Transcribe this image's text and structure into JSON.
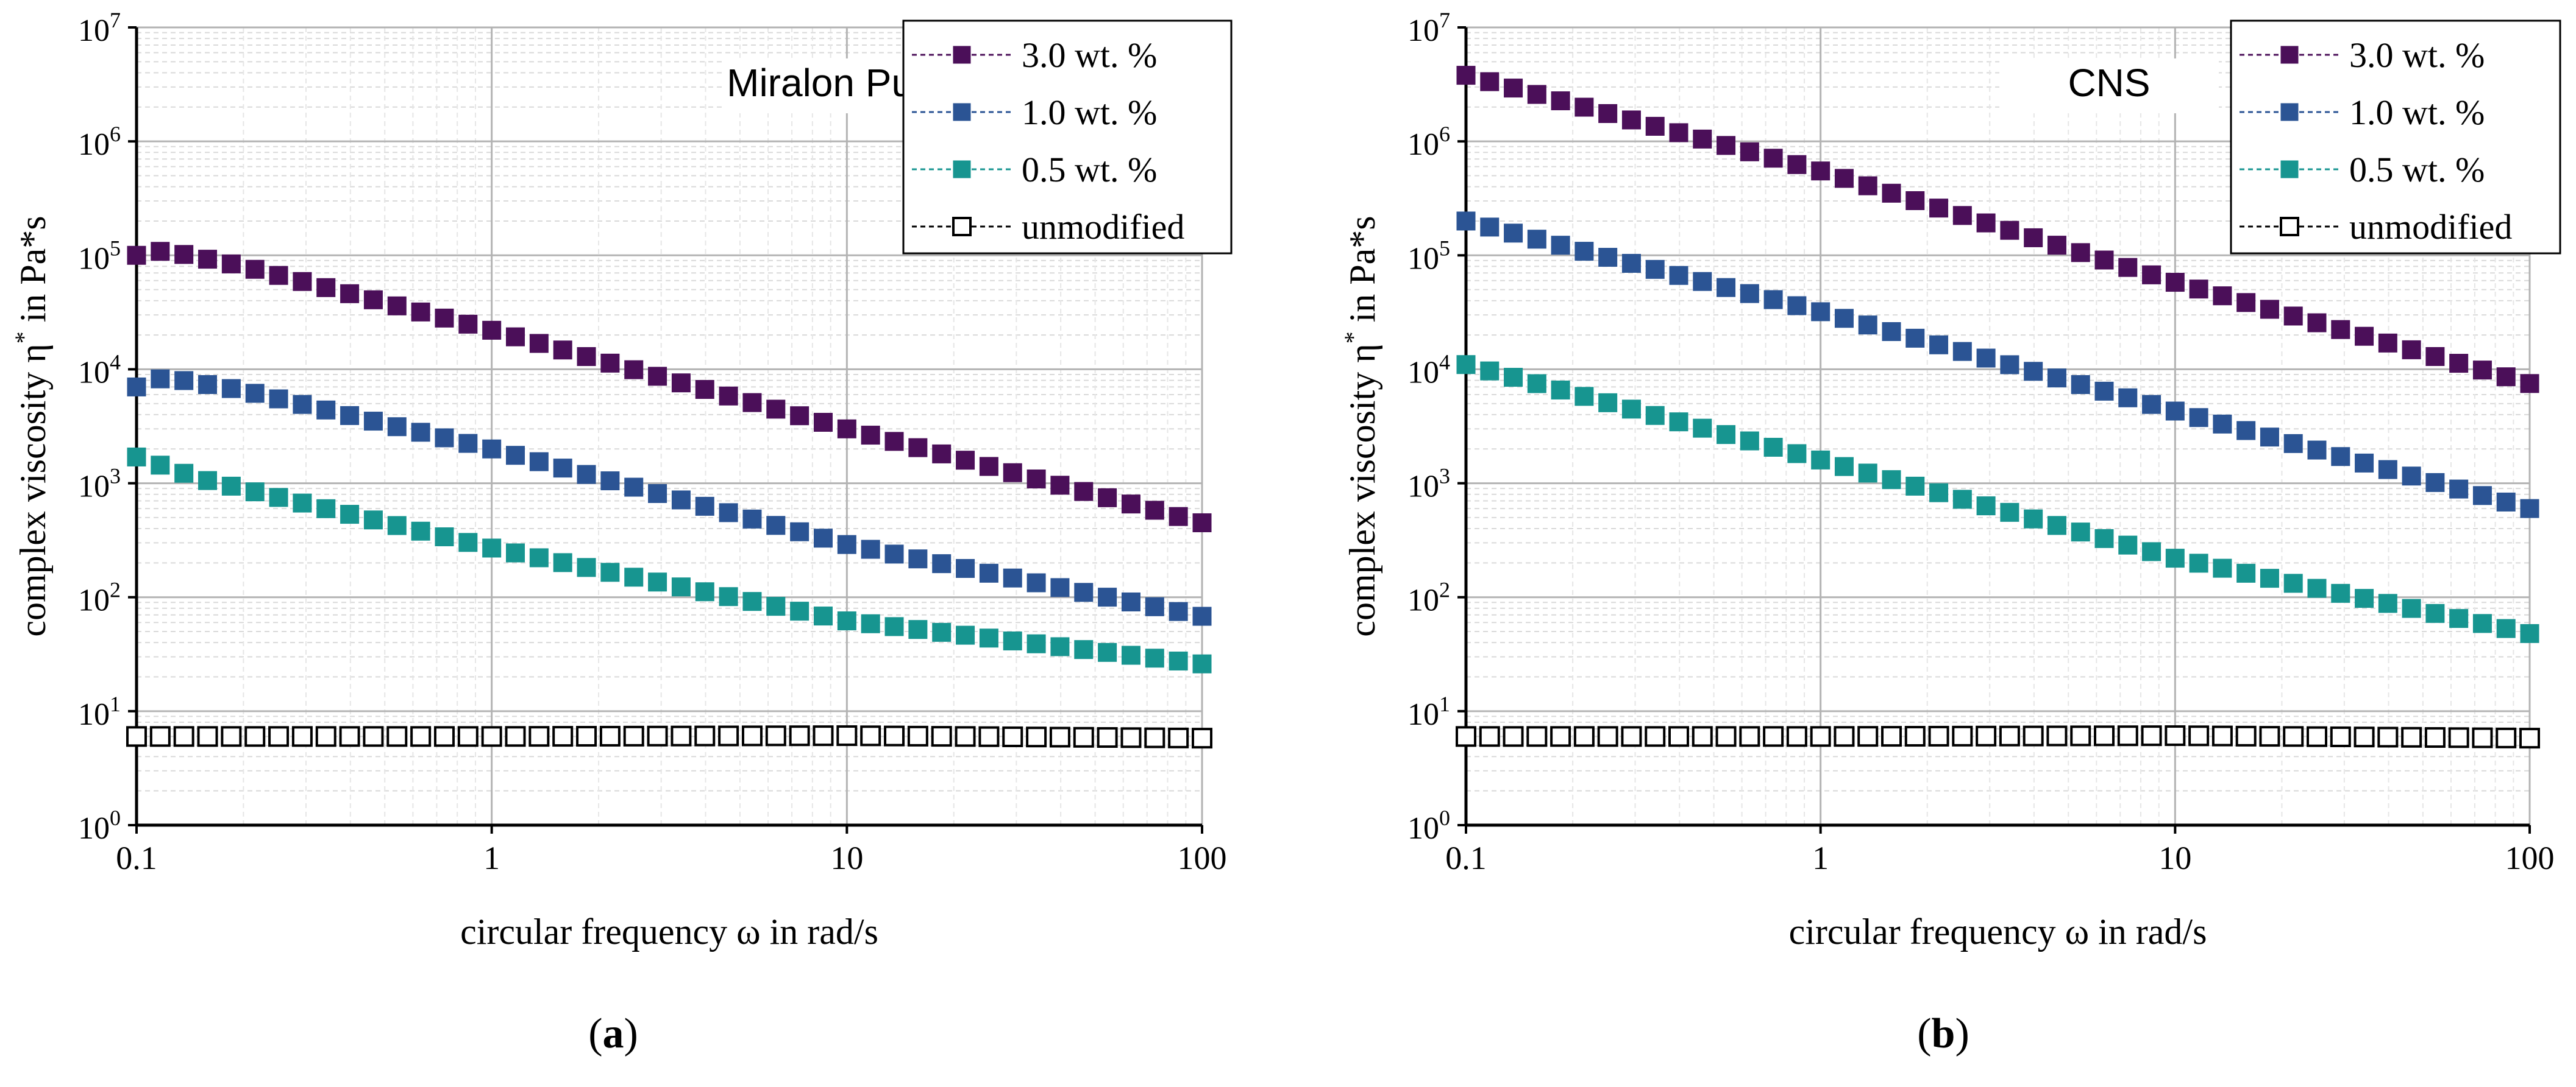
{
  "figure": {
    "panels": [
      {
        "label": "a",
        "label_text": "(a)",
        "title": "Miralon Pulp"
      },
      {
        "label": "b",
        "label_text": "(b)",
        "title": "CNS"
      }
    ]
  },
  "chart_data": [
    {
      "type": "scatter",
      "panel": "a",
      "title": "Miralon Pulp",
      "xlabel": "circular frequency ω in rad/s",
      "ylabel_prefix": "complex viscosity η",
      "ylabel_sup": "*",
      "ylabel_suffix": " in Pa*s",
      "xscale": "log",
      "yscale": "log",
      "xlim": [
        0.1,
        100
      ],
      "ylim": [
        1,
        10000000
      ],
      "x_ticks": [
        {
          "value": 0.1,
          "label": "0.1"
        },
        {
          "value": 1,
          "label": "1"
        },
        {
          "value": 10,
          "label": "10"
        },
        {
          "value": 100,
          "label": "100"
        }
      ],
      "y_ticks": [
        {
          "value": 1,
          "base": "10",
          "exp": "0"
        },
        {
          "value": 10,
          "base": "10",
          "exp": "1"
        },
        {
          "value": 100,
          "base": "10",
          "exp": "2"
        },
        {
          "value": 1000,
          "base": "10",
          "exp": "3"
        },
        {
          "value": 10000,
          "base": "10",
          "exp": "4"
        },
        {
          "value": 100000,
          "base": "10",
          "exp": "5"
        },
        {
          "value": 1000000,
          "base": "10",
          "exp": "6"
        },
        {
          "value": 10000000,
          "base": "10",
          "exp": "7"
        }
      ],
      "grid": true,
      "points_per_series": 46,
      "legend_position": "top-right",
      "series": [
        {
          "name": "3.0 wt. %",
          "color": "#4b0f59",
          "marker": "filled-square",
          "key_points": [
            [
              0.1,
              100000
            ],
            [
              0.12,
              110000
            ],
            [
              0.2,
              80000
            ],
            [
              1,
              22000
            ],
            [
              10,
              3000
            ],
            [
              100,
              450
            ]
          ]
        },
        {
          "name": "1.0 wt. %",
          "color": "#2b5494",
          "marker": "filled-square",
          "key_points": [
            [
              0.1,
              7000
            ],
            [
              0.12,
              8500
            ],
            [
              0.2,
              6500
            ],
            [
              1,
              2000
            ],
            [
              10,
              290
            ],
            [
              100,
              68
            ]
          ]
        },
        {
          "name": "0.5 wt. %",
          "color": "#179590",
          "marker": "filled-square",
          "key_points": [
            [
              0.1,
              1700
            ],
            [
              0.15,
              1100
            ],
            [
              1,
              270
            ],
            [
              10,
              62
            ],
            [
              100,
              26
            ]
          ]
        },
        {
          "name": "unmodified",
          "color": "#000000",
          "marker": "open-square",
          "key_points": [
            [
              0.1,
              6
            ],
            [
              1,
              6
            ],
            [
              10,
              6.1
            ],
            [
              100,
              5.8
            ]
          ]
        }
      ]
    },
    {
      "type": "scatter",
      "panel": "b",
      "title": "CNS",
      "xlabel": "circular frequency ω in rad/s",
      "ylabel_prefix": "complex viscosity η",
      "ylabel_sup": "*",
      "ylabel_suffix": " in Pa*s",
      "xscale": "log",
      "yscale": "log",
      "xlim": [
        0.1,
        100
      ],
      "ylim": [
        1,
        10000000
      ],
      "x_ticks": [
        {
          "value": 0.1,
          "label": "0.1"
        },
        {
          "value": 1,
          "label": "1"
        },
        {
          "value": 10,
          "label": "10"
        },
        {
          "value": 100,
          "label": "100"
        }
      ],
      "y_ticks": [
        {
          "value": 1,
          "base": "10",
          "exp": "0"
        },
        {
          "value": 10,
          "base": "10",
          "exp": "1"
        },
        {
          "value": 100,
          "base": "10",
          "exp": "2"
        },
        {
          "value": 1000,
          "base": "10",
          "exp": "3"
        },
        {
          "value": 10000,
          "base": "10",
          "exp": "4"
        },
        {
          "value": 100000,
          "base": "10",
          "exp": "5"
        },
        {
          "value": 1000000,
          "base": "10",
          "exp": "6"
        },
        {
          "value": 10000000,
          "base": "10",
          "exp": "7"
        }
      ],
      "grid": true,
      "points_per_series": 46,
      "legend_position": "top-right",
      "series": [
        {
          "name": "3.0 wt. %",
          "color": "#4b0f59",
          "marker": "filled-square",
          "key_points": [
            [
              0.1,
              3800000
            ],
            [
              1,
              550000
            ],
            [
              10,
              58000
            ],
            [
              100,
              7500
            ]
          ]
        },
        {
          "name": "1.0 wt. %",
          "color": "#2b5494",
          "marker": "filled-square",
          "key_points": [
            [
              0.1,
              200000
            ],
            [
              1,
              32000
            ],
            [
              10,
              4300
            ],
            [
              100,
              600
            ]
          ]
        },
        {
          "name": "0.5 wt. %",
          "color": "#179590",
          "marker": "filled-square",
          "key_points": [
            [
              0.1,
              11000
            ],
            [
              1,
              1600
            ],
            [
              10,
              220
            ],
            [
              100,
              48
            ]
          ]
        },
        {
          "name": "unmodified",
          "color": "#000000",
          "marker": "open-square",
          "key_points": [
            [
              0.1,
              6
            ],
            [
              1,
              6
            ],
            [
              10,
              6.1
            ],
            [
              100,
              5.8
            ]
          ]
        }
      ]
    }
  ]
}
